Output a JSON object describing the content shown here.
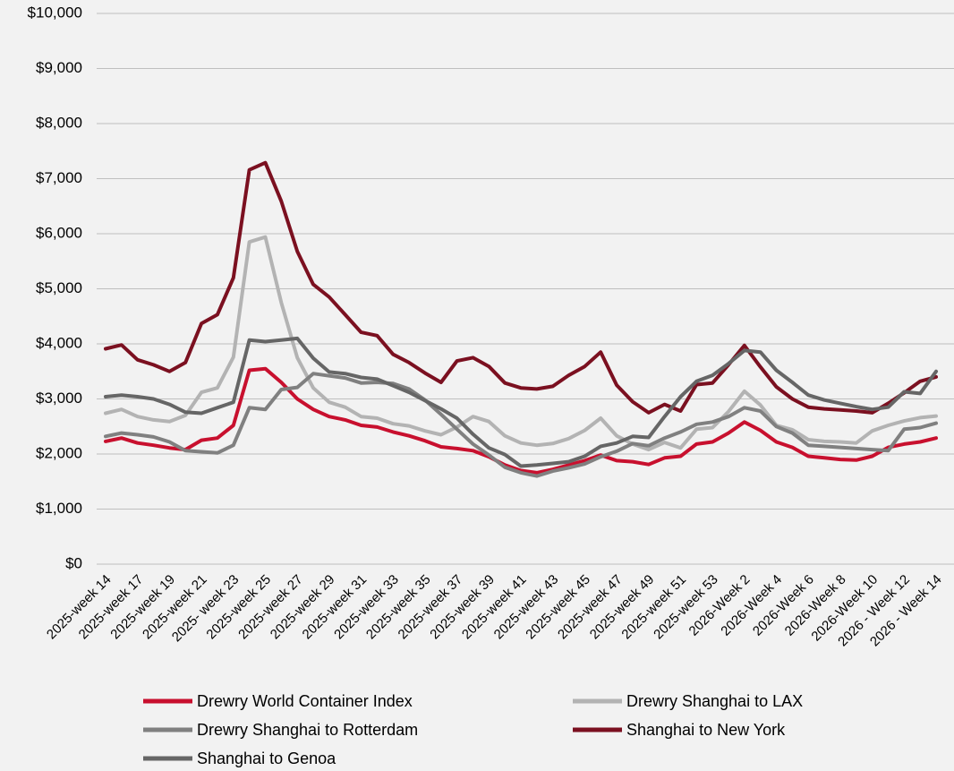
{
  "chart_data": {
    "type": "line",
    "categories": [
      "2025-week 14",
      null,
      "2025-week 17",
      null,
      "2025-week 19",
      null,
      "2025-week 21",
      null,
      "2025- week 23",
      null,
      "2025-week 25",
      null,
      "2025-week 27",
      null,
      "2025-week 29",
      null,
      "2025-week 31",
      null,
      "2025-week 33",
      null,
      "2025-week 35",
      null,
      "2025-week 37",
      null,
      "2025-week 39",
      null,
      "2025-week 41",
      null,
      "2025-week 43",
      null,
      "2025-week 45",
      null,
      "2025-week 47",
      null,
      "2025-week 49",
      null,
      "2025-week 51",
      null,
      "2025-week 53",
      null,
      "2026-Week 2",
      null,
      "2026-Week 4",
      null,
      "2026-Week 6",
      null,
      "2026-Week 8",
      null,
      "2026-Week 10",
      null,
      "2026 - Week 12",
      null,
      "2026 - Week 14"
    ],
    "series": [
      {
        "name": "Drewry World Container Index",
        "color": "#c8102e",
        "values": [
          2230,
          2290,
          2200,
          2160,
          2110,
          2080,
          2250,
          2290,
          2520,
          3520,
          3550,
          3300,
          3000,
          2810,
          2680,
          2620,
          2520,
          2490,
          2400,
          2330,
          2240,
          2130,
          2100,
          2060,
          1950,
          1800,
          1700,
          1660,
          1720,
          1800,
          1880,
          1980,
          1880,
          1860,
          1810,
          1930,
          1960,
          2180,
          2220,
          2380,
          2580,
          2430,
          2220,
          2120,
          1960,
          1930,
          1900,
          1890,
          1960,
          2120,
          2180,
          2220,
          2290
        ]
      },
      {
        "name": "Drewry Shanghai to LAX",
        "color": "#b3b3b3",
        "values": [
          2740,
          2810,
          2680,
          2620,
          2590,
          2700,
          3120,
          3200,
          3760,
          5850,
          5940,
          4750,
          3750,
          3200,
          2940,
          2850,
          2680,
          2650,
          2550,
          2510,
          2420,
          2350,
          2490,
          2680,
          2590,
          2330,
          2200,
          2160,
          2190,
          2280,
          2430,
          2650,
          2330,
          2180,
          2080,
          2210,
          2110,
          2450,
          2480,
          2770,
          3140,
          2890,
          2520,
          2440,
          2260,
          2230,
          2220,
          2200,
          2420,
          2520,
          2600,
          2660,
          2690
        ]
      },
      {
        "name": "Drewry Shanghai to Rotterdam",
        "color": "#808080",
        "values": [
          2320,
          2380,
          2350,
          2310,
          2220,
          2060,
          2040,
          2020,
          2160,
          2840,
          2810,
          3170,
          3210,
          3460,
          3420,
          3380,
          3290,
          3300,
          3280,
          3180,
          2980,
          2720,
          2450,
          2180,
          1980,
          1760,
          1660,
          1600,
          1690,
          1750,
          1820,
          1950,
          2050,
          2190,
          2150,
          2290,
          2400,
          2540,
          2580,
          2680,
          2840,
          2780,
          2500,
          2380,
          2160,
          2140,
          2120,
          2100,
          2080,
          2060,
          2450,
          2480,
          2560
        ]
      },
      {
        "name": "Shanghai to New York",
        "color": "#7b1020",
        "values": [
          3910,
          3980,
          3710,
          3620,
          3500,
          3660,
          4370,
          4530,
          5200,
          7160,
          7290,
          6590,
          5680,
          5080,
          4850,
          4530,
          4210,
          4150,
          3810,
          3660,
          3470,
          3300,
          3690,
          3750,
          3590,
          3290,
          3200,
          3180,
          3230,
          3430,
          3590,
          3850,
          3250,
          2950,
          2750,
          2900,
          2780,
          3260,
          3290,
          3620,
          3970,
          3580,
          3220,
          3000,
          2850,
          2820,
          2800,
          2780,
          2750,
          2920,
          3110,
          3320,
          3400
        ]
      },
      {
        "name": "Shanghai to Genoa",
        "color": "#666666",
        "values": [
          3040,
          3070,
          3040,
          3000,
          2900,
          2760,
          2740,
          2840,
          2940,
          4070,
          4040,
          4070,
          4100,
          3740,
          3490,
          3460,
          3390,
          3360,
          3240,
          3120,
          2970,
          2820,
          2650,
          2360,
          2110,
          1990,
          1780,
          1800,
          1830,
          1860,
          1960,
          2140,
          2200,
          2320,
          2300,
          2680,
          3040,
          3320,
          3430,
          3640,
          3880,
          3850,
          3520,
          3300,
          3070,
          2980,
          2920,
          2860,
          2810,
          2850,
          3130,
          3100,
          3500
        ]
      }
    ],
    "ylim": [
      0,
      10000
    ],
    "yticks": [
      {
        "value": 0,
        "label": "$0"
      },
      {
        "value": 1000,
        "label": "$1,000"
      },
      {
        "value": 2000,
        "label": "$2,000"
      },
      {
        "value": 3000,
        "label": "$3,000"
      },
      {
        "value": 4000,
        "label": "$4,000"
      },
      {
        "value": 5000,
        "label": "$5,000"
      },
      {
        "value": 6000,
        "label": "$6,000"
      },
      {
        "value": 7000,
        "label": "$7,000"
      },
      {
        "value": 8000,
        "label": "$8,000"
      },
      {
        "value": 9000,
        "label": "$9,000"
      },
      {
        "value": 10000,
        "label": "$10,000"
      }
    ],
    "grid": true,
    "legend": "bottom"
  }
}
